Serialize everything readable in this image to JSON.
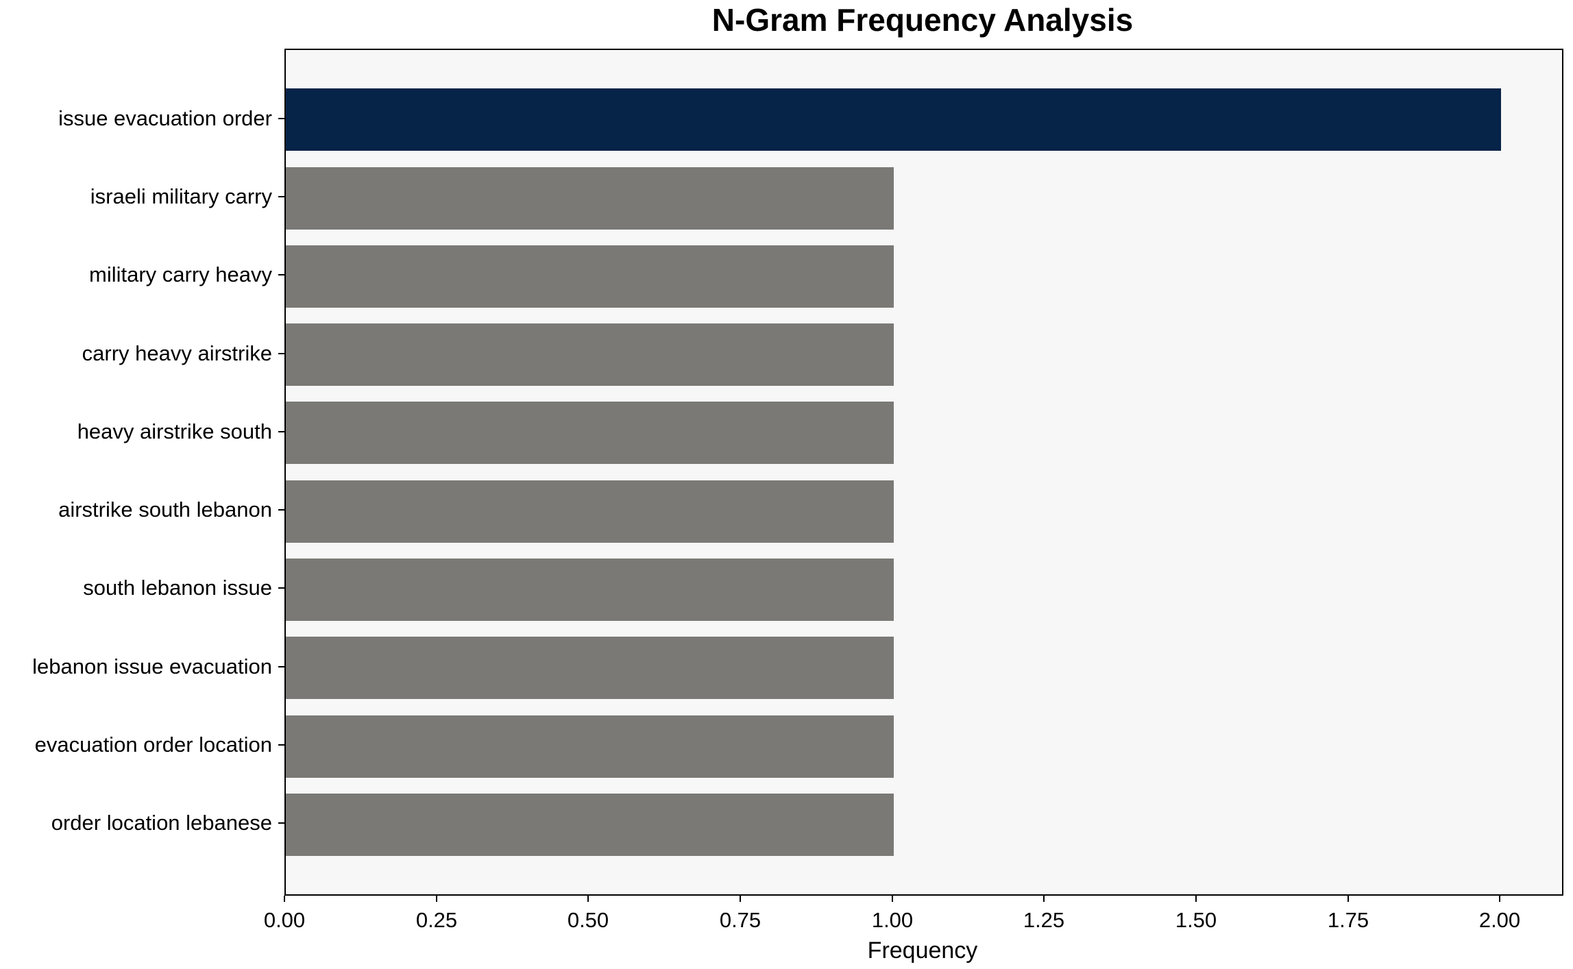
{
  "chart_data": {
    "type": "bar",
    "orientation": "horizontal",
    "title": "N-Gram Frequency Analysis",
    "xlabel": "Frequency",
    "ylabel": "",
    "categories": [
      "issue evacuation order",
      "israeli military carry",
      "military carry heavy",
      "carry heavy airstrike",
      "heavy airstrike south",
      "airstrike south lebanon",
      "south lebanon issue",
      "lebanon issue evacuation",
      "evacuation order location",
      "order location lebanese"
    ],
    "values": [
      2,
      1,
      1,
      1,
      1,
      1,
      1,
      1,
      1,
      1
    ],
    "highlight_index": 0,
    "xlim": [
      0,
      2.1
    ],
    "x_tick_values": [
      0,
      0.25,
      0.5,
      0.75,
      1.0,
      1.25,
      1.5,
      1.75,
      2.0
    ],
    "x_tick_labels": [
      "0.00",
      "0.25",
      "0.50",
      "0.75",
      "1.00",
      "1.25",
      "1.50",
      "1.75",
      "2.00"
    ],
    "grid": false,
    "legend": null,
    "colors": {
      "highlight_bar": "#062348",
      "default_bar": "#7a7975",
      "plot_background": "#f7f7f7",
      "figure_background": "#ffffff",
      "axis": "#000000",
      "text": "#000000"
    }
  }
}
